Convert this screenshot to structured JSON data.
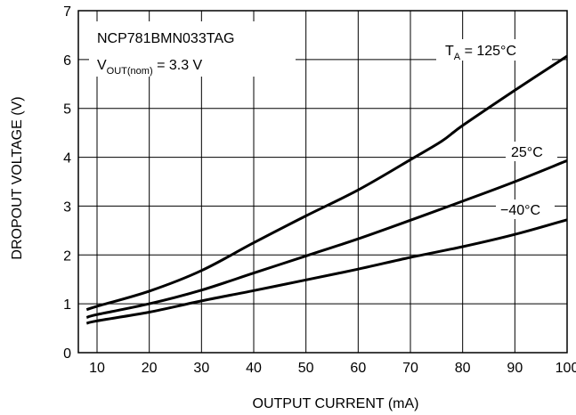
{
  "chart_data": {
    "type": "line",
    "title": "",
    "xlabel": "OUTPUT CURRENT (mA)",
    "ylabel": "DROPOUT VOLTAGE (V)",
    "xlim": [
      10,
      100
    ],
    "ylim": [
      0,
      7
    ],
    "xticks": [
      "10",
      "20",
      "30",
      "40",
      "50",
      "60",
      "70",
      "80",
      "90",
      "100"
    ],
    "yticks": [
      "0",
      "1",
      "2",
      "3",
      "4",
      "5",
      "6",
      "7"
    ],
    "grid": true,
    "annotation": {
      "device": "NCP781BMN033TAG",
      "vout_main": "V",
      "vout_sub": "OUT(nom)",
      "vout_rest": " = 3.3 V"
    },
    "series": [
      {
        "name": "125°C",
        "label_main": "T",
        "label_sub": "A",
        "label_rest": " = 125°C",
        "x": [
          8,
          10,
          20,
          30,
          40,
          50,
          60,
          70,
          76,
          80,
          90,
          100
        ],
        "y": [
          0.88,
          0.95,
          1.26,
          1.68,
          2.25,
          2.8,
          3.33,
          3.95,
          4.33,
          4.65,
          5.37,
          6.07
        ]
      },
      {
        "name": "25°C",
        "label_main": "25°C",
        "x": [
          8,
          10,
          20,
          30,
          40,
          50,
          60,
          70,
          80,
          90,
          100
        ],
        "y": [
          0.72,
          0.78,
          1.0,
          1.28,
          1.63,
          1.98,
          2.33,
          2.71,
          3.1,
          3.5,
          3.93
        ]
      },
      {
        "name": "-40°C",
        "label_main": "−40°C",
        "x": [
          8,
          10,
          20,
          30,
          40,
          50,
          60,
          70,
          80,
          90,
          100
        ],
        "y": [
          0.6,
          0.65,
          0.83,
          1.06,
          1.27,
          1.49,
          1.71,
          1.95,
          2.17,
          2.42,
          2.72
        ]
      }
    ]
  }
}
